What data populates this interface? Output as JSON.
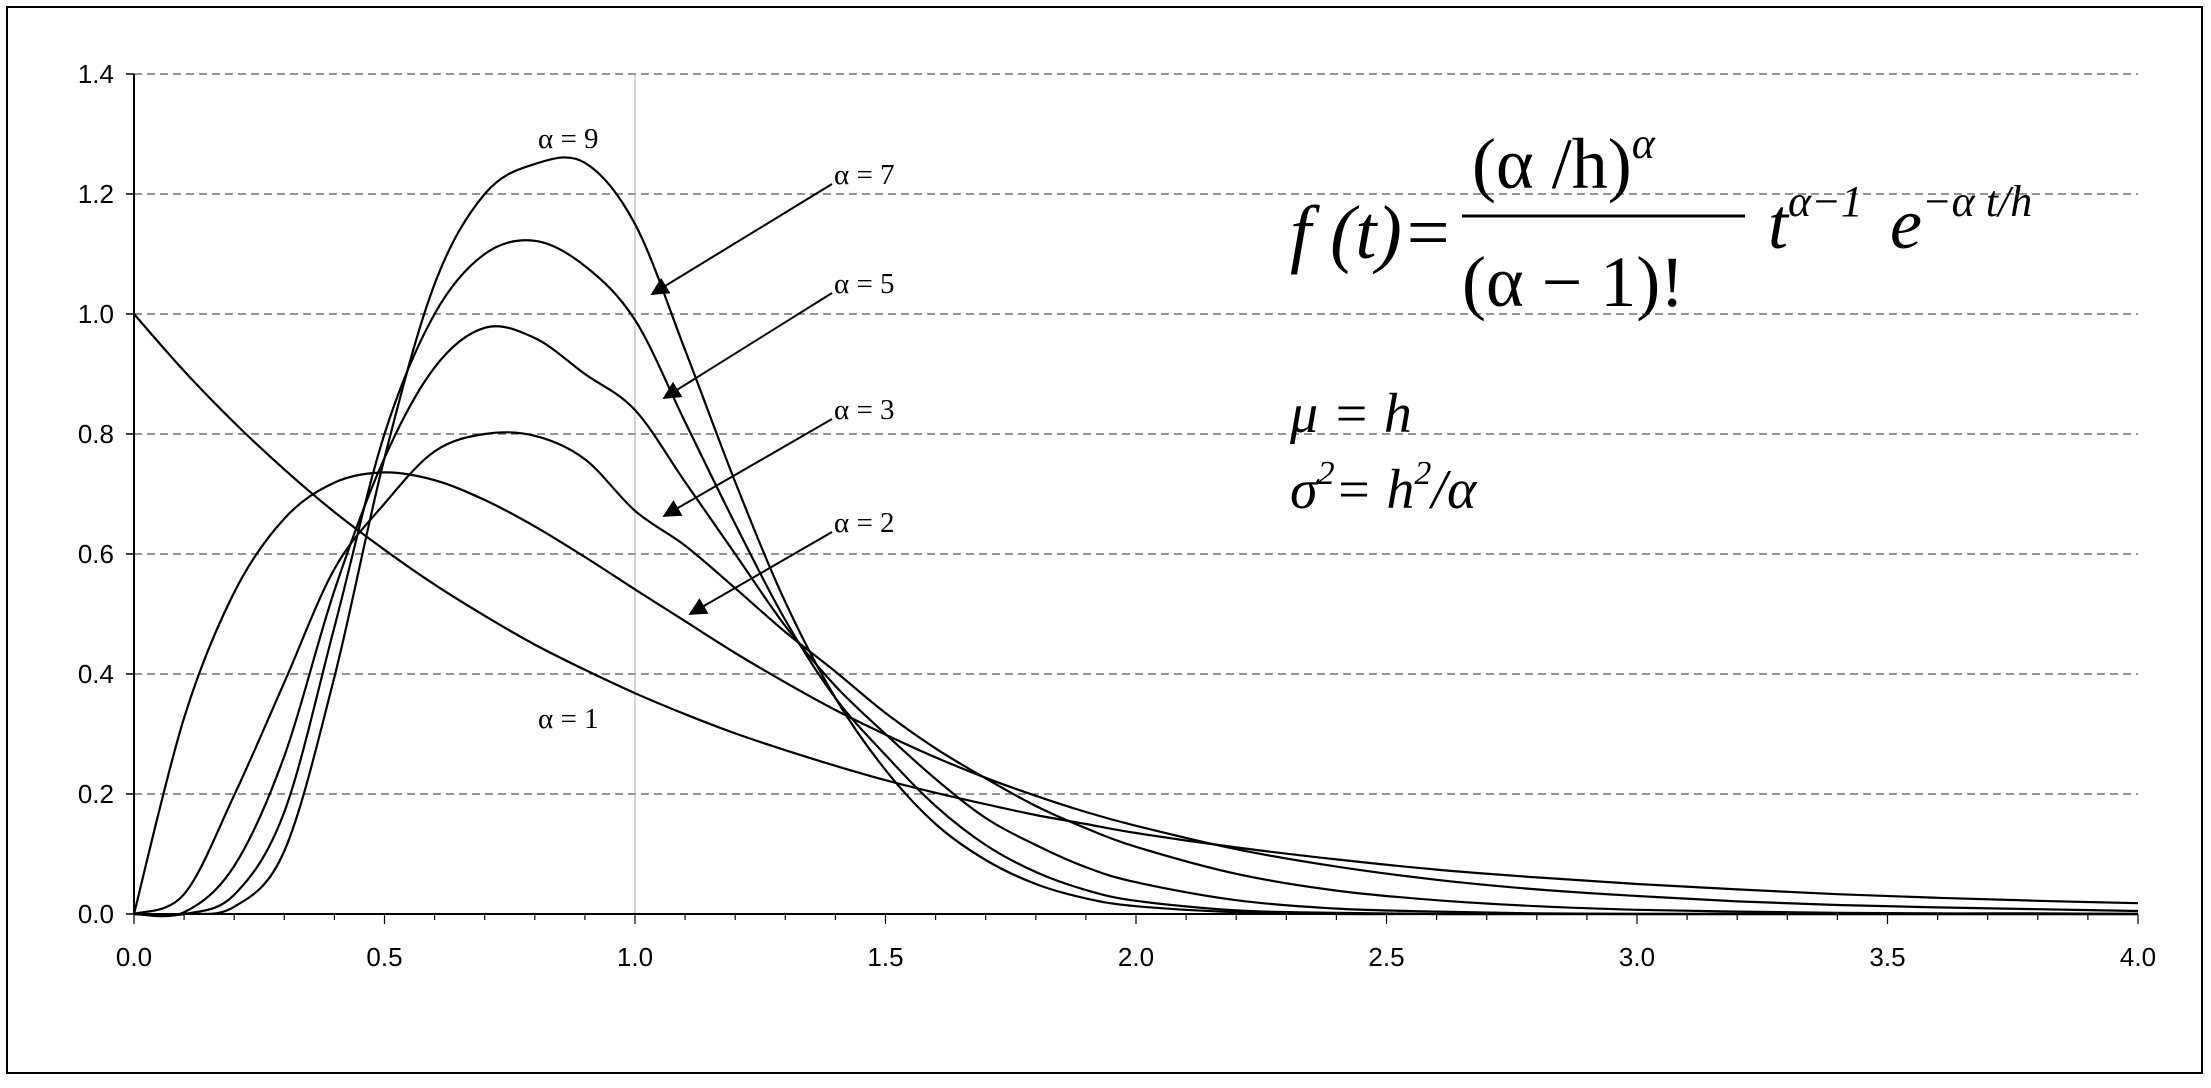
{
  "chart_data": {
    "type": "line",
    "title": "",
    "xlabel": "",
    "ylabel": "",
    "xlim": [
      0,
      4.0
    ],
    "ylim": [
      0,
      1.4
    ],
    "x_ticks": [
      "0.0",
      "0.5",
      "1.0",
      "1.5",
      "2.0",
      "2.5",
      "3.0",
      "3.5",
      "4.0"
    ],
    "y_ticks": [
      "0.0",
      "0.2",
      "0.4",
      "0.6",
      "0.8",
      "1.0",
      "1.2",
      "1.4"
    ],
    "grid": {
      "horizontal": true,
      "style": "dashed"
    },
    "x": [
      0.0,
      0.1,
      0.2,
      0.3,
      0.4,
      0.5,
      0.6,
      0.7,
      0.8,
      0.9,
      1.0,
      1.1,
      1.2,
      1.3,
      1.4,
      1.5,
      1.6,
      1.7,
      1.8,
      1.9,
      2.0,
      2.2,
      2.4,
      2.6,
      2.8,
      3.0,
      3.2,
      3.4,
      3.6,
      3.8,
      4.0
    ],
    "series": [
      {
        "name": "α = 1",
        "values": [
          1.0,
          0.905,
          0.819,
          0.741,
          0.67,
          0.607,
          0.549,
          0.497,
          0.449,
          0.407,
          0.368,
          0.333,
          0.301,
          0.273,
          0.247,
          0.223,
          0.202,
          0.183,
          0.165,
          0.15,
          0.135,
          0.111,
          0.091,
          0.074,
          0.061,
          0.05,
          0.041,
          0.033,
          0.027,
          0.022,
          0.018
        ]
      },
      {
        "name": "α = 2",
        "values": [
          0.0,
          0.327,
          0.536,
          0.659,
          0.719,
          0.736,
          0.723,
          0.69,
          0.646,
          0.595,
          0.541,
          0.488,
          0.435,
          0.386,
          0.34,
          0.299,
          0.261,
          0.227,
          0.197,
          0.17,
          0.147,
          0.108,
          0.079,
          0.057,
          0.041,
          0.03,
          0.021,
          0.015,
          0.011,
          0.008,
          0.005
        ]
      },
      {
        "name": "α = 3",
        "values": [
          0.0,
          0.033,
          0.198,
          0.386,
          0.575,
          0.684,
          0.771,
          0.8,
          0.797,
          0.758,
          0.672,
          0.614,
          0.543,
          0.47,
          0.404,
          0.335,
          0.276,
          0.226,
          0.18,
          0.143,
          0.112,
          0.067,
          0.039,
          0.023,
          0.013,
          0.007,
          0.004,
          0.002,
          0.001,
          0.001,
          0.0
        ]
      },
      {
        "name": "α = 5",
        "values": [
          0.0,
          0.003,
          0.08,
          0.263,
          0.539,
          0.76,
          0.911,
          0.977,
          0.96,
          0.9,
          0.84,
          0.72,
          0.6,
          0.48,
          0.38,
          0.3,
          0.225,
          0.16,
          0.115,
          0.078,
          0.053,
          0.023,
          0.009,
          0.004,
          0.001,
          0.0,
          0.0,
          0.0,
          0.0,
          0.0,
          0.0
        ]
      },
      {
        "name": "α = 7",
        "values": [
          0.0,
          0.0,
          0.032,
          0.17,
          0.478,
          0.8,
          1.0,
          1.1,
          1.122,
          1.08,
          0.99,
          0.82,
          0.65,
          0.49,
          0.36,
          0.265,
          0.18,
          0.115,
          0.07,
          0.04,
          0.022,
          0.006,
          0.002,
          0.0,
          0.0,
          0.0,
          0.0,
          0.0,
          0.0,
          0.0,
          0.0
        ]
      },
      {
        "name": "α = 9",
        "values": [
          0.0,
          0.0,
          0.012,
          0.105,
          0.395,
          0.76,
          1.05,
          1.2,
          1.25,
          1.252,
          1.15,
          0.94,
          0.72,
          0.52,
          0.36,
          0.24,
          0.15,
          0.09,
          0.05,
          0.026,
          0.013,
          0.003,
          0.0,
          0.0,
          0.0,
          0.0,
          0.0,
          0.0,
          0.0,
          0.0,
          0.0
        ]
      }
    ],
    "labels": [
      "α = 9",
      "α = 7",
      "α = 5",
      "α = 3",
      "α = 2",
      "α = 1"
    ],
    "formula": {
      "lhs": "f (t)=",
      "numerator_base": "(α /h)",
      "numerator_exp": "α",
      "denominator": "(α − 1)!",
      "t_base": "t",
      "t_exp": "α−1",
      "e_base": "e",
      "e_exp": "−α t/h"
    },
    "moments": {
      "mu": "μ = h",
      "sigma_sym": "σ",
      "sigma_exp": "2",
      "sigma_eq": "= h",
      "h_exp": "2",
      "sigma_tail": "/α"
    }
  }
}
